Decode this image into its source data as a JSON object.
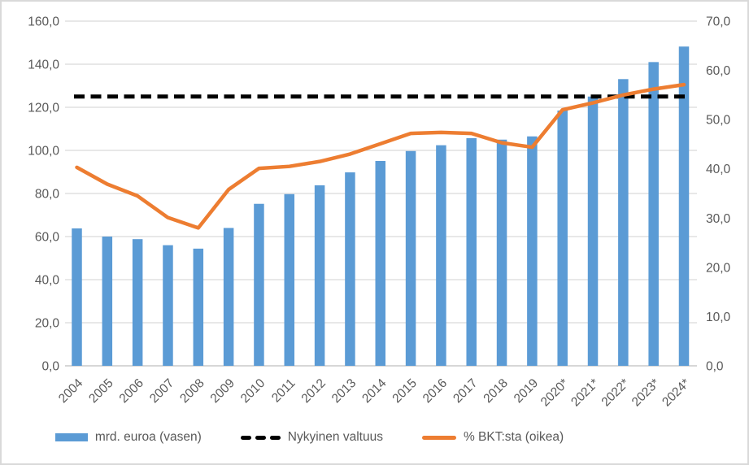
{
  "chart_data": {
    "type": "bar",
    "subtype": "combo-bar-line-dual-axis",
    "title": "",
    "xlabel": "",
    "ylabel": "",
    "grid": true,
    "legend_position": "bottom",
    "categories": [
      "2004",
      "2005",
      "2006",
      "2007",
      "2008",
      "2009",
      "2010",
      "2011",
      "2012",
      "2013",
      "2014",
      "2015",
      "2016",
      "2017",
      "2018",
      "2019",
      "2020*",
      "2021*",
      "2022*",
      "2023*",
      "2024*"
    ],
    "series": [
      {
        "name": "mrd. euroa (vasen)",
        "type": "bar",
        "axis": "left",
        "color": "#5B9BD5",
        "values": [
          63.8,
          60.0,
          58.8,
          56.0,
          54.4,
          64.0,
          75.2,
          79.7,
          83.8,
          89.8,
          95.1,
          99.7,
          102.4,
          105.7,
          105.0,
          106.5,
          118.5,
          125.0,
          133.1,
          141.0,
          148.2
        ]
      },
      {
        "name": "Nykyinen valtuus",
        "type": "line-dashed",
        "axis": "left",
        "color": "#000000",
        "constant_value": 125
      },
      {
        "name": "% BKT:sta (oikea)",
        "type": "line",
        "axis": "right",
        "color": "#ED7D31",
        "values": [
          40.3,
          36.9,
          34.5,
          30.1,
          28.0,
          35.8,
          40.1,
          40.5,
          41.5,
          43.0,
          45.1,
          47.2,
          47.4,
          47.2,
          45.3,
          44.4,
          52.0,
          53.4,
          55.0,
          56.2,
          57.1
        ]
      }
    ],
    "left_axis": {
      "min": 0,
      "max": 160,
      "step": 20,
      "tick_labels": [
        "160,0",
        "140,0",
        "120,0",
        "100,0",
        "80,0",
        "60,0",
        "40,0",
        "20,0",
        "0,0"
      ]
    },
    "right_axis": {
      "min": 0,
      "max": 70,
      "step": 10,
      "tick_labels": [
        "70,0",
        "60,0",
        "50,0",
        "40,0",
        "30,0",
        "20,0",
        "10,0",
        "0,0"
      ]
    }
  },
  "legend": {
    "bars_label": "mrd. euroa (vasen)",
    "authorization_label": "Nykyinen valtuus",
    "pct_label": "% BKT:sta (oikea)"
  },
  "colors": {
    "bar": "#5B9BD5",
    "pct_line": "#ED7D31",
    "authorization_line": "#000000",
    "axis_text": "#595959",
    "gridline": "#D9D9D9",
    "axis_line": "#BFBFBF",
    "background": "#FFFFFF",
    "border": "#D9D9D9"
  }
}
